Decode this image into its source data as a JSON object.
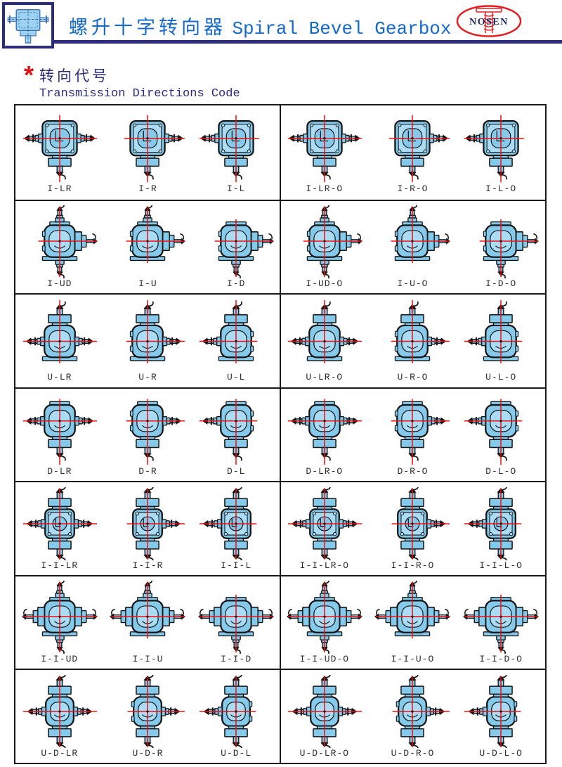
{
  "header": {
    "title_zh": "螺升十字转向器",
    "title_en": "Spiral Bevel Gearbox",
    "brand_name": "NOSEN",
    "logo_icon": "gearbox-line-icon",
    "brand_logo_icon": "screw-jack-ellipse-icon"
  },
  "section_heading": {
    "marker": "*",
    "zh": "转向代号",
    "en": "Transmission Directions Code"
  },
  "colors": {
    "title_blue": "#1569c8",
    "navy": "#2b2b80",
    "logo_red": "#e02020",
    "gearbox_fill": "#85caea",
    "gearbox_fill_light": "#aadcf5",
    "outline": "#151515",
    "crosshair_red": "#ee1010",
    "label_color": "#2e2e2e"
  },
  "table": {
    "rows": [
      {
        "cells": [
          {
            "label": "I-LR",
            "body": "square",
            "ports": [
              "shaft-left",
              "shaft-right",
              "flange-down"
            ]
          },
          {
            "label": "I-R",
            "body": "square",
            "ports": [
              "shaft-right",
              "flange-down"
            ]
          },
          {
            "label": "I-L",
            "body": "square",
            "ports": [
              "shaft-left",
              "flange-down"
            ]
          },
          {
            "label": "I-LR-O",
            "body": "square",
            "ports": [
              "shaft-left",
              "shaft-right",
              "flange-down"
            ]
          },
          {
            "label": "I-R-O",
            "body": "square",
            "ports": [
              "shaft-right",
              "flange-down"
            ]
          },
          {
            "label": "I-L-O",
            "body": "square",
            "ports": [
              "shaft-left",
              "flange-down"
            ]
          }
        ]
      },
      {
        "cells": [
          {
            "label": "I-UD",
            "body": "round",
            "ports": [
              "shaft-up",
              "shaft-down",
              "flange-right"
            ]
          },
          {
            "label": "I-U",
            "body": "round",
            "ports": [
              "shaft-up",
              "flange-right"
            ]
          },
          {
            "label": "I-D",
            "body": "round",
            "ports": [
              "shaft-down",
              "flange-right"
            ]
          },
          {
            "label": "I-UD-O",
            "body": "round",
            "ports": [
              "shaft-up",
              "shaft-down",
              "flange-right"
            ]
          },
          {
            "label": "I-U-O",
            "body": "round",
            "ports": [
              "shaft-up",
              "flange-right"
            ]
          },
          {
            "label": "I-D-O",
            "body": "round",
            "ports": [
              "shaft-down",
              "flange-right"
            ]
          }
        ]
      },
      {
        "cells": [
          {
            "label": "U-LR",
            "body": "round",
            "ports": [
              "shaft-left",
              "shaft-right",
              "flange-up"
            ]
          },
          {
            "label": "U-R",
            "body": "round",
            "ports": [
              "shaft-right",
              "flange-up"
            ]
          },
          {
            "label": "U-L",
            "body": "round",
            "ports": [
              "shaft-left",
              "flange-up"
            ]
          },
          {
            "label": "U-LR-O",
            "body": "round",
            "ports": [
              "shaft-left",
              "shaft-right",
              "flange-up"
            ]
          },
          {
            "label": "U-R-O",
            "body": "round",
            "ports": [
              "shaft-right",
              "flange-up"
            ]
          },
          {
            "label": "U-L-O",
            "body": "round",
            "ports": [
              "shaft-left",
              "flange-up"
            ]
          }
        ]
      },
      {
        "cells": [
          {
            "label": "D-LR",
            "body": "round",
            "ports": [
              "shaft-left",
              "shaft-right",
              "flange-down"
            ]
          },
          {
            "label": "D-R",
            "body": "round",
            "ports": [
              "shaft-right",
              "flange-down"
            ]
          },
          {
            "label": "D-L",
            "body": "round",
            "ports": [
              "shaft-left",
              "flange-down"
            ]
          },
          {
            "label": "D-LR-O",
            "body": "round",
            "ports": [
              "shaft-left",
              "shaft-right",
              "flange-down"
            ]
          },
          {
            "label": "D-R-O",
            "body": "round",
            "ports": [
              "shaft-right",
              "flange-down"
            ]
          },
          {
            "label": "D-L-O",
            "body": "round",
            "ports": [
              "shaft-left",
              "flange-down"
            ]
          }
        ]
      },
      {
        "cells": [
          {
            "label": "I-I-LR",
            "body": "square",
            "ports": [
              "shaft-left",
              "shaft-right",
              "flange-up",
              "flange-down"
            ]
          },
          {
            "label": "I-I-R",
            "body": "square",
            "ports": [
              "shaft-right",
              "flange-up",
              "flange-down"
            ]
          },
          {
            "label": "I-I-L",
            "body": "square",
            "ports": [
              "shaft-left",
              "flange-up",
              "flange-down"
            ]
          },
          {
            "label": "I-I-LR-O",
            "body": "square",
            "ports": [
              "shaft-left",
              "shaft-right",
              "flange-up",
              "flange-down"
            ]
          },
          {
            "label": "I-I-R-O",
            "body": "square",
            "ports": [
              "shaft-right",
              "flange-up",
              "flange-down"
            ]
          },
          {
            "label": "I-I-L-O",
            "body": "square",
            "ports": [
              "shaft-left",
              "flange-up",
              "flange-down"
            ]
          }
        ]
      },
      {
        "cells": [
          {
            "label": "I-I-UD",
            "body": "round",
            "ports": [
              "shaft-up",
              "shaft-down",
              "flange-left",
              "flange-right"
            ]
          },
          {
            "label": "I-I-U",
            "body": "round",
            "ports": [
              "shaft-up",
              "flange-left",
              "flange-right"
            ]
          },
          {
            "label": "I-I-D",
            "body": "round",
            "ports": [
              "shaft-down",
              "flange-left",
              "flange-right"
            ]
          },
          {
            "label": "I-I-UD-O",
            "body": "round",
            "ports": [
              "shaft-up",
              "shaft-down",
              "flange-left",
              "flange-right"
            ]
          },
          {
            "label": "I-I-U-O",
            "body": "round",
            "ports": [
              "shaft-up",
              "flange-left",
              "flange-right"
            ]
          },
          {
            "label": "I-I-D-O",
            "body": "round",
            "ports": [
              "shaft-down",
              "flange-left",
              "flange-right"
            ]
          }
        ]
      },
      {
        "cells": [
          {
            "label": "U-D-LR",
            "body": "round",
            "ports": [
              "shaft-left",
              "shaft-right",
              "flange-up",
              "flange-down"
            ]
          },
          {
            "label": "U-D-R",
            "body": "round",
            "ports": [
              "shaft-right",
              "flange-up",
              "flange-down"
            ]
          },
          {
            "label": "U-D-L",
            "body": "round",
            "ports": [
              "shaft-left",
              "flange-up",
              "flange-down"
            ]
          },
          {
            "label": "U-D-LR-O",
            "body": "round",
            "ports": [
              "shaft-left",
              "shaft-right",
              "flange-up",
              "flange-down"
            ]
          },
          {
            "label": "U-D-R-O",
            "body": "round",
            "ports": [
              "shaft-right",
              "flange-up",
              "flange-down"
            ]
          },
          {
            "label": "U-D-L-O",
            "body": "round",
            "ports": [
              "shaft-left",
              "flange-up",
              "flange-down"
            ]
          }
        ]
      }
    ]
  }
}
